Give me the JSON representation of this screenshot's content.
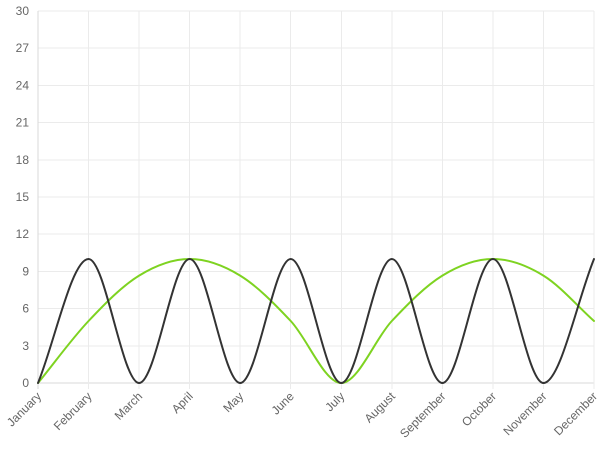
{
  "chart_data": {
    "type": "line",
    "title": "",
    "xlabel": "",
    "ylabel": "",
    "categories": [
      "January",
      "February",
      "March",
      "April",
      "May",
      "June",
      "July",
      "August",
      "September",
      "October",
      "November",
      "December"
    ],
    "ylim": [
      0,
      30
    ],
    "y_ticks": [
      0,
      3,
      6,
      9,
      12,
      15,
      18,
      21,
      24,
      27,
      30
    ],
    "grid": true,
    "legend": "none",
    "series": [
      {
        "color": "#333333",
        "values": [
          0,
          10,
          0,
          10,
          0,
          10,
          0,
          10,
          0,
          10,
          0,
          10
        ],
        "smooth": true
      },
      {
        "color": "#7ed321",
        "values": [
          0,
          5,
          8.66,
          10,
          8.66,
          5,
          0,
          5,
          8.66,
          10,
          8.66,
          5
        ],
        "smooth": true
      }
    ]
  }
}
